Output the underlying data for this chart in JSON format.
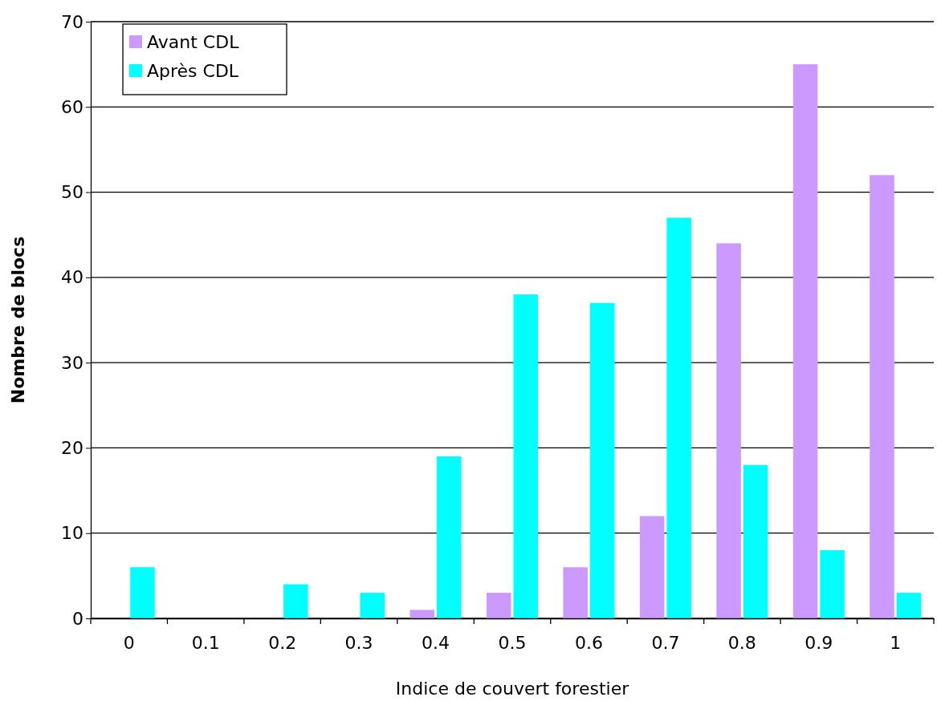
{
  "chart_data": {
    "type": "bar",
    "xlabel": "Indice de couvert forestier",
    "ylabel": "Nombre de blocs",
    "categories": [
      "0",
      "0.1",
      "0.2",
      "0.3",
      "0.4",
      "0.5",
      "0.6",
      "0.7",
      "0.8",
      "0.9",
      "1"
    ],
    "series": [
      {
        "name": "Avant CDL",
        "color": "#cc99ff",
        "values": [
          0,
          0,
          0,
          0,
          1,
          3,
          6,
          12,
          44,
          65,
          52
        ]
      },
      {
        "name": "Après CDL",
        "color": "#00ffff",
        "values": [
          6,
          0,
          4,
          3,
          19,
          38,
          37,
          47,
          18,
          8,
          3
        ]
      }
    ],
    "ylim": [
      0,
      70
    ],
    "yticks": [
      0,
      10,
      20,
      30,
      40,
      50,
      60,
      70
    ],
    "grid": "y",
    "legend": "top left"
  }
}
